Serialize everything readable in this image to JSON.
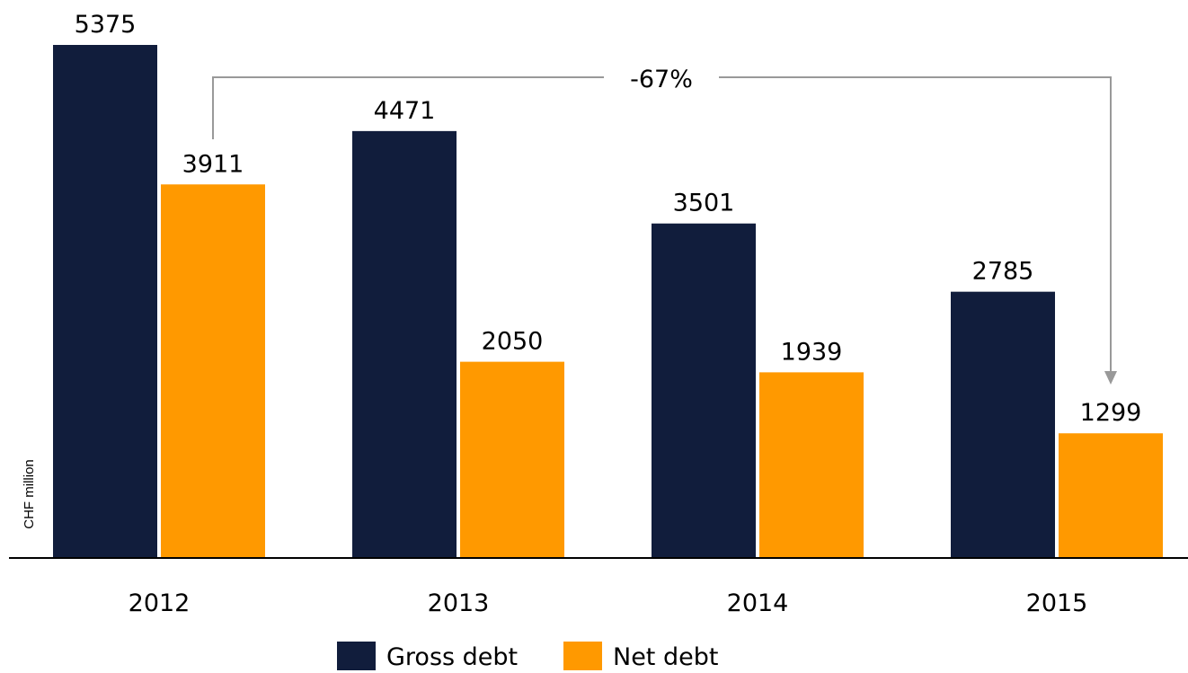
{
  "chart_data": {
    "type": "bar",
    "categories": [
      "2012",
      "2013",
      "2014",
      "2015"
    ],
    "series": [
      {
        "name": "Gross debt",
        "color": "#111d3c",
        "values": [
          5375,
          4471,
          3501,
          2785
        ]
      },
      {
        "name": "Net debt",
        "color": "#ff9900",
        "values": [
          3911,
          2050,
          1939,
          1299
        ]
      }
    ],
    "y_label": "CHF million",
    "annotation": "-67%"
  }
}
